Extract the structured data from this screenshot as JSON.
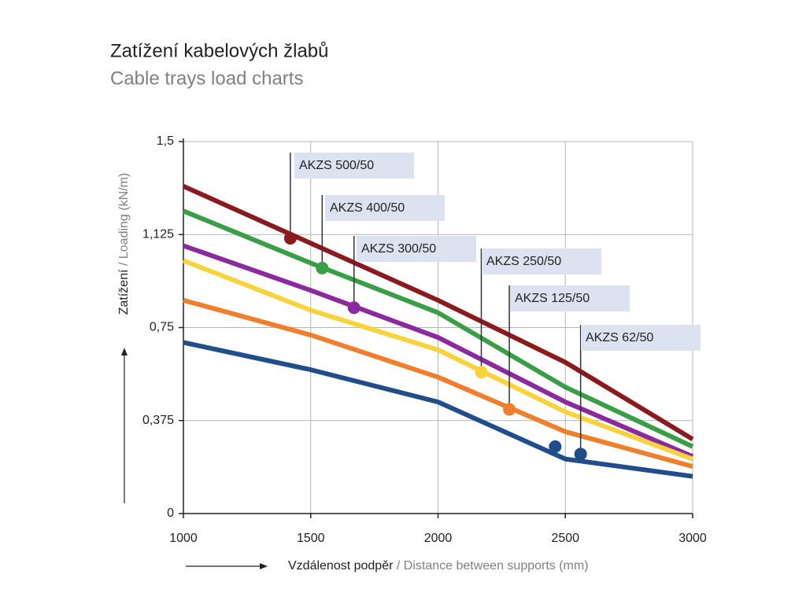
{
  "chart_data": {
    "type": "line",
    "title": "Zatížení kabelových žlabů",
    "subtitle": "Cable trays load charts",
    "ylabel": "Zatížení",
    "ylabel_en": "/ Loading (kN/m)",
    "xlabel": "Vzdálenost podpěr",
    "xlabel_en": "/ Distance between supports (mm)",
    "x": [
      1000,
      1500,
      2000,
      2500,
      3000
    ],
    "xlim": [
      1000,
      3000
    ],
    "xticks": [
      1000,
      1500,
      2000,
      2500,
      3000
    ],
    "ylim": [
      0,
      1.5
    ],
    "yticks": [
      0,
      {
        "value": 0.375,
        "label": "0,375"
      },
      {
        "value": 0.75,
        "label": "0,75"
      },
      {
        "value": 1.125,
        "label": "1,125"
      },
      {
        "value": 1.5,
        "label": "1,5"
      }
    ],
    "grid": true,
    "series": [
      {
        "name": "AKZS 500/50",
        "color": "#8b1a1f",
        "values": [
          1.32,
          1.09,
          0.86,
          0.61,
          0.3
        ],
        "markers": [
          [
            1420,
            1.11
          ]
        ]
      },
      {
        "name": "AKZS 400/50",
        "color": "#3a9e47",
        "values": [
          1.22,
          1.01,
          0.81,
          0.51,
          0.27
        ],
        "markers": [
          [
            1545,
            0.99
          ]
        ]
      },
      {
        "name": "AKZS 300/50",
        "color": "#8a2a9c",
        "values": [
          1.08,
          0.9,
          0.71,
          0.45,
          0.23
        ],
        "markers": [
          [
            1670,
            0.83
          ]
        ]
      },
      {
        "name": "AKZS 250/50",
        "color": "#f8d33e",
        "values": [
          1.02,
          0.82,
          0.66,
          0.41,
          0.22
        ],
        "markers": [
          [
            2170,
            0.57
          ]
        ]
      },
      {
        "name": "AKZS 125/50",
        "color": "#ef7f2c",
        "values": [
          0.86,
          0.72,
          0.55,
          0.33,
          0.19
        ],
        "markers": [
          [
            2280,
            0.42
          ]
        ]
      },
      {
        "name": "AKZS 62/50",
        "color": "#1f4e8a",
        "values": [
          0.69,
          0.58,
          0.45,
          0.22,
          0.15
        ],
        "markers": [
          [
            2460,
            0.27
          ],
          [
            2560,
            0.24
          ]
        ]
      }
    ]
  }
}
